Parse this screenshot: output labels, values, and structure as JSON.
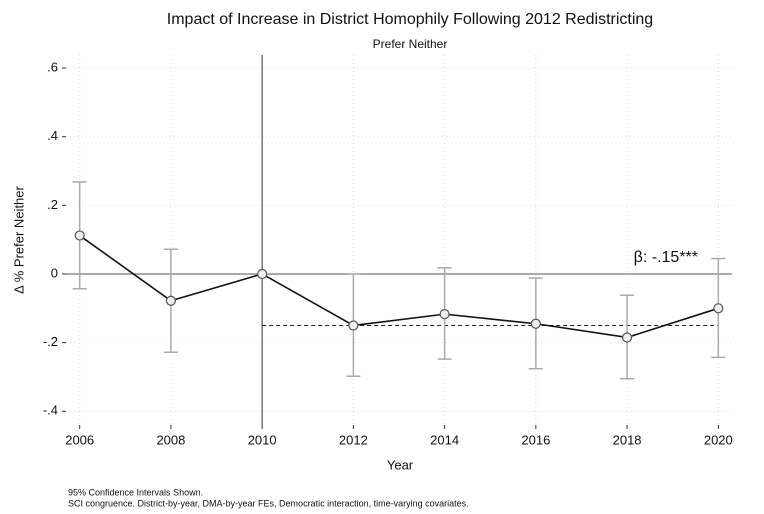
{
  "chart_data": {
    "type": "line",
    "title": "Impact of Increase in District Homophily Following 2012 Redistricting",
    "subtitle": "Prefer Neither",
    "x_label": "Year",
    "y_label": "Δ % Prefer Neither",
    "x": [
      2006,
      2008,
      2010,
      2012,
      2014,
      2016,
      2018,
      2020
    ],
    "series": [
      {
        "name": "Prefer Neither",
        "color": "#111111",
        "values": [
          0.112,
          -0.078,
          0,
          -0.15,
          -0.117,
          -0.145,
          -0.185,
          -0.1
        ],
        "ci_low": [
          -0.043,
          -0.228,
          null,
          -0.298,
          -0.248,
          -0.276,
          -0.305,
          -0.243
        ],
        "ci_high": [
          0.268,
          0.072,
          null,
          0.0,
          0.018,
          -0.012,
          -0.062,
          0.045
        ]
      }
    ],
    "xlim": [
      2005.7,
      2020.3
    ],
    "ylim": [
      -0.44,
      0.638
    ],
    "xticks": [
      2006,
      2008,
      2010,
      2012,
      2014,
      2016,
      2018,
      2020
    ],
    "yticks": [
      {
        "value": -0.4,
        "label": "-.4"
      },
      {
        "value": -0.2,
        "label": "-.2"
      },
      0,
      {
        "value": 0.2,
        "label": ".2"
      },
      {
        "value": 0.4,
        "label": ".4"
      },
      {
        "value": 0.6,
        "label": ".6"
      }
    ],
    "grid": true,
    "reference_x": 2010,
    "reference_y": 0,
    "beta": {
      "value": -0.15,
      "label": "β: -.15***",
      "from": 2010,
      "to": 2020
    },
    "notes": [
      "95% Confidence Intervals Shown.",
      "SCI congruence. District-by-year, DMA-by-year FEs, Democratic interaction, time-varying covariates."
    ]
  }
}
